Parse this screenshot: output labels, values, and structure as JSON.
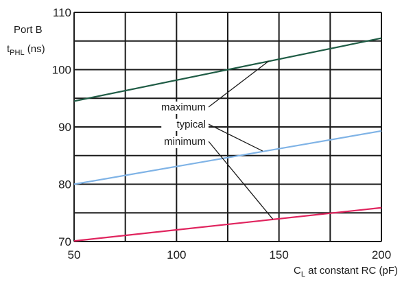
{
  "chart_data": {
    "type": "line",
    "title": "",
    "ylabel": {
      "line1": "Port B",
      "line2_main": "t",
      "line2_sub": "PHL",
      "line2_rest": " (ns)"
    },
    "xlabel": {
      "main": "C",
      "sub": "L",
      "rest": " at constant RC (pF)"
    },
    "xlim": [
      50,
      200
    ],
    "ylim": [
      70,
      110
    ],
    "xticks": [
      50,
      100,
      150,
      200
    ],
    "xtick_labels": [
      "50",
      "100",
      "150",
      "200"
    ],
    "yticks": [
      70,
      80,
      90,
      100,
      110
    ],
    "ytick_labels": [
      "70",
      "80",
      "90",
      "100",
      "110"
    ],
    "grid": true,
    "grid_x_minor": [
      75,
      125,
      175
    ],
    "grid_y_minor": [
      75,
      85,
      95,
      105
    ],
    "legend": "annotations",
    "series": [
      {
        "name": "maximum",
        "x": [
          50,
          200
        ],
        "y": [
          94.5,
          105.5
        ],
        "color": "#1f5c45"
      },
      {
        "name": "typical",
        "x": [
          50,
          200
        ],
        "y": [
          80,
          89.3
        ],
        "color": "#7fb3e6"
      },
      {
        "name": "minimum",
        "x": [
          50,
          200
        ],
        "y": [
          70.1,
          75.9
        ],
        "color": "#e0245e"
      }
    ],
    "annotations": [
      {
        "text": "maximum",
        "target_series": "maximum",
        "point": [
          145,
          101.5
        ]
      },
      {
        "text": "typical",
        "target_series": "typical",
        "point": [
          142,
          85.8
        ]
      },
      {
        "text": "minimum",
        "target_series": "minimum",
        "point": [
          147,
          73.9
        ]
      }
    ]
  }
}
